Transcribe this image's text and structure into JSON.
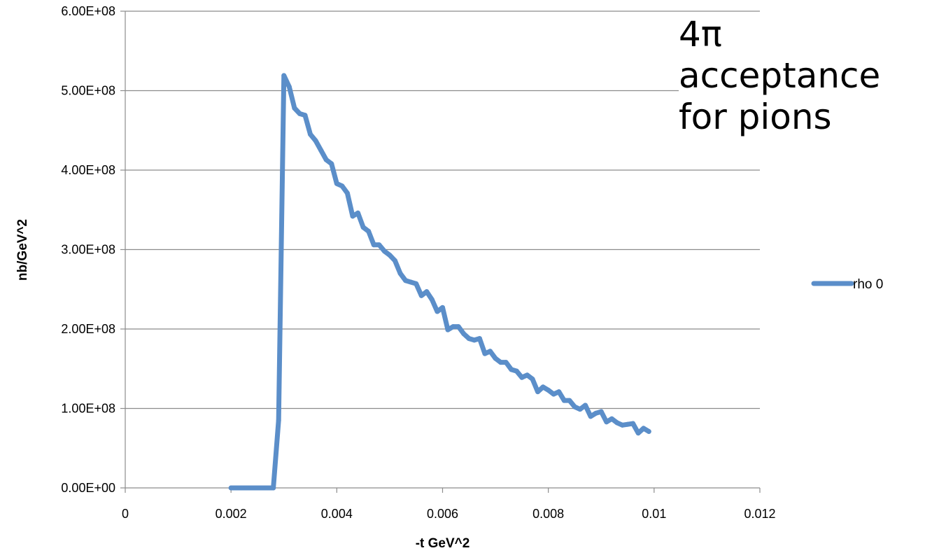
{
  "annotation": "4π acceptance\nfor pions",
  "chart_data": {
    "type": "line",
    "title": "",
    "xlabel": "-t GeV^2",
    "ylabel": "nb/GeV^2",
    "xlim": [
      0,
      0.012
    ],
    "ylim": [
      0,
      600000000
    ],
    "x_ticks": [
      "0",
      "0.002",
      "0.004",
      "0.006",
      "0.008",
      "0.01",
      "0.012"
    ],
    "y_ticks": [
      "0.00E+00",
      "1.00E+08",
      "2.00E+08",
      "3.00E+08",
      "4.00E+08",
      "5.00E+08",
      "6.00E+08"
    ],
    "grid": "horizontal",
    "legend_position": "right",
    "series": [
      {
        "name": "rho 0",
        "color": "#5b8ec9",
        "x": [
          0.002,
          0.0021,
          0.0022,
          0.0023,
          0.0024,
          0.0025,
          0.0026,
          0.0027,
          0.0028,
          0.0029,
          0.003,
          0.0031,
          0.0032,
          0.0033,
          0.0034,
          0.0035,
          0.0036,
          0.0037,
          0.0038,
          0.0039,
          0.004,
          0.0041,
          0.0042,
          0.0043,
          0.0044,
          0.0045,
          0.0046,
          0.0047,
          0.0048,
          0.0049,
          0.005,
          0.0051,
          0.0052,
          0.0053,
          0.0054,
          0.0055,
          0.0056,
          0.0057,
          0.0058,
          0.0059,
          0.006,
          0.0061,
          0.0062,
          0.0063,
          0.0064,
          0.0065,
          0.0066,
          0.0067,
          0.0068,
          0.0069,
          0.007,
          0.0071,
          0.0072,
          0.0073,
          0.0074,
          0.0075,
          0.0076,
          0.0077,
          0.0078,
          0.0079,
          0.008,
          0.0081,
          0.0082,
          0.0083,
          0.0084,
          0.0085,
          0.0086,
          0.0087,
          0.0088,
          0.0089,
          0.009,
          0.0091,
          0.0092,
          0.0093,
          0.0094,
          0.0095,
          0.0096,
          0.0097,
          0.0098,
          0.0099
        ],
        "values": [
          0,
          0,
          0,
          0,
          0,
          0,
          0,
          0,
          0,
          85000000,
          519000000,
          505000000,
          478000000,
          471000000,
          469000000,
          445000000,
          437000000,
          425000000,
          413000000,
          408000000,
          383000000,
          380000000,
          371000000,
          342000000,
          346000000,
          328000000,
          323000000,
          306000000,
          306000000,
          298000000,
          293000000,
          286000000,
          270000000,
          261000000,
          259000000,
          257000000,
          242000000,
          247000000,
          237000000,
          222000000,
          227000000,
          199000000,
          203000000,
          203000000,
          194000000,
          188000000,
          186000000,
          188000000,
          169000000,
          172000000,
          163000000,
          158000000,
          158000000,
          149000000,
          147000000,
          139000000,
          142000000,
          137000000,
          121000000,
          127000000,
          123000000,
          118000000,
          121000000,
          110000000,
          110000000,
          102000000,
          99000000,
          104000000,
          90000000,
          94000000,
          96000000,
          83000000,
          87000000,
          82000000,
          79000000,
          80000000,
          81000000,
          69000000,
          75000000,
          71000000
        ]
      }
    ]
  }
}
